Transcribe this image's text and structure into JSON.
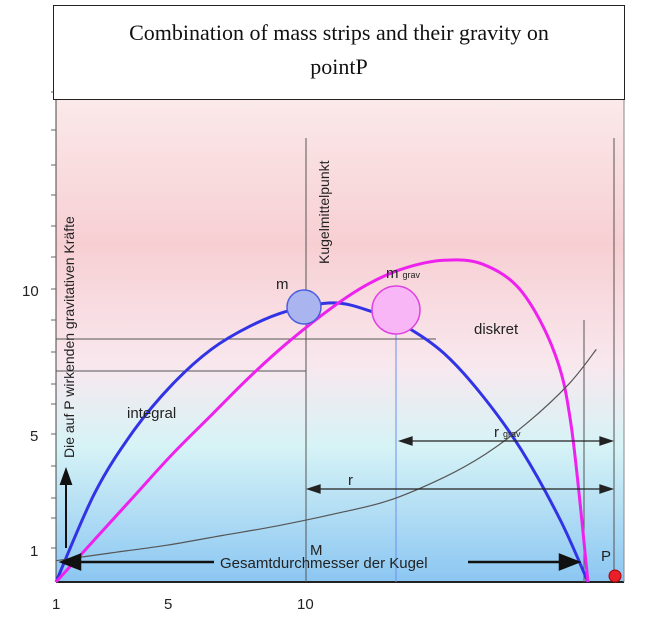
{
  "chart_data": {
    "type": "line",
    "title": "Combination of mass strips and their gravity on",
    "title_line2": "pointP",
    "ylabel": "Die auf P wirkenden gravitativen Kräfte",
    "x_ticks": [
      "1",
      "5",
      "10"
    ],
    "y_ticks": [
      "1",
      "5",
      "10"
    ],
    "xlim": [
      0,
      20.5
    ],
    "ylim": [
      0,
      14.5
    ],
    "grid": false,
    "series": [
      {
        "name": "integral",
        "color": "#3333e6",
        "x": [
          0,
          1.4,
          2.8,
          4.2,
          5.6,
          7,
          8.4,
          10,
          11.3,
          12.6,
          14,
          15.4,
          16.8,
          18.2,
          19.2
        ],
        "y": [
          0,
          2.3,
          3.9,
          5.1,
          6.0,
          6.6,
          7.0,
          7.2,
          7.0,
          6.6,
          5.9,
          4.8,
          3.4,
          1.6,
          0
        ]
      },
      {
        "name": "diskret",
        "color": "#ee22ee",
        "x": [
          0,
          1.4,
          2.8,
          4.2,
          5.6,
          7,
          8.4,
          10,
          11.3,
          12.6,
          14,
          15.4,
          16.8,
          18.0,
          18.6,
          19.2
        ],
        "y": [
          0,
          1.1,
          2.2,
          3.3,
          4.3,
          5.3,
          6.2,
          7.1,
          7.7,
          8.1,
          8.3,
          8.2,
          7.5,
          5.9,
          4.0,
          0
        ]
      },
      {
        "name": "",
        "color": "#555555",
        "x": [
          0,
          2,
          4,
          6,
          8,
          10,
          12,
          14,
          15.5,
          17,
          18.5,
          19.5
        ],
        "y": [
          0.55,
          0.75,
          0.95,
          1.2,
          1.45,
          1.75,
          2.1,
          2.7,
          3.3,
          4.1,
          5.1,
          6.0
        ]
      }
    ],
    "annotations": {
      "kugelmittelpunkt": "Kugelmittelpunkt",
      "m": "m",
      "m_grav_m": "m",
      "m_grav_sub": "grav",
      "diskret": "diskret",
      "integral": "integral",
      "r_grav_r": "r",
      "r_grav_sub": "grav",
      "r": "r",
      "M": "M",
      "gesamt": "Gesamtdurchmesser der Kugel",
      "P": "P"
    },
    "colors": {
      "integral": "#3333e6",
      "diskret": "#ee22ee",
      "trend": "#555555",
      "point_p": "#e8202a",
      "mass_m": "#aab4ee",
      "mass_grav": "#f8b6f6"
    }
  }
}
